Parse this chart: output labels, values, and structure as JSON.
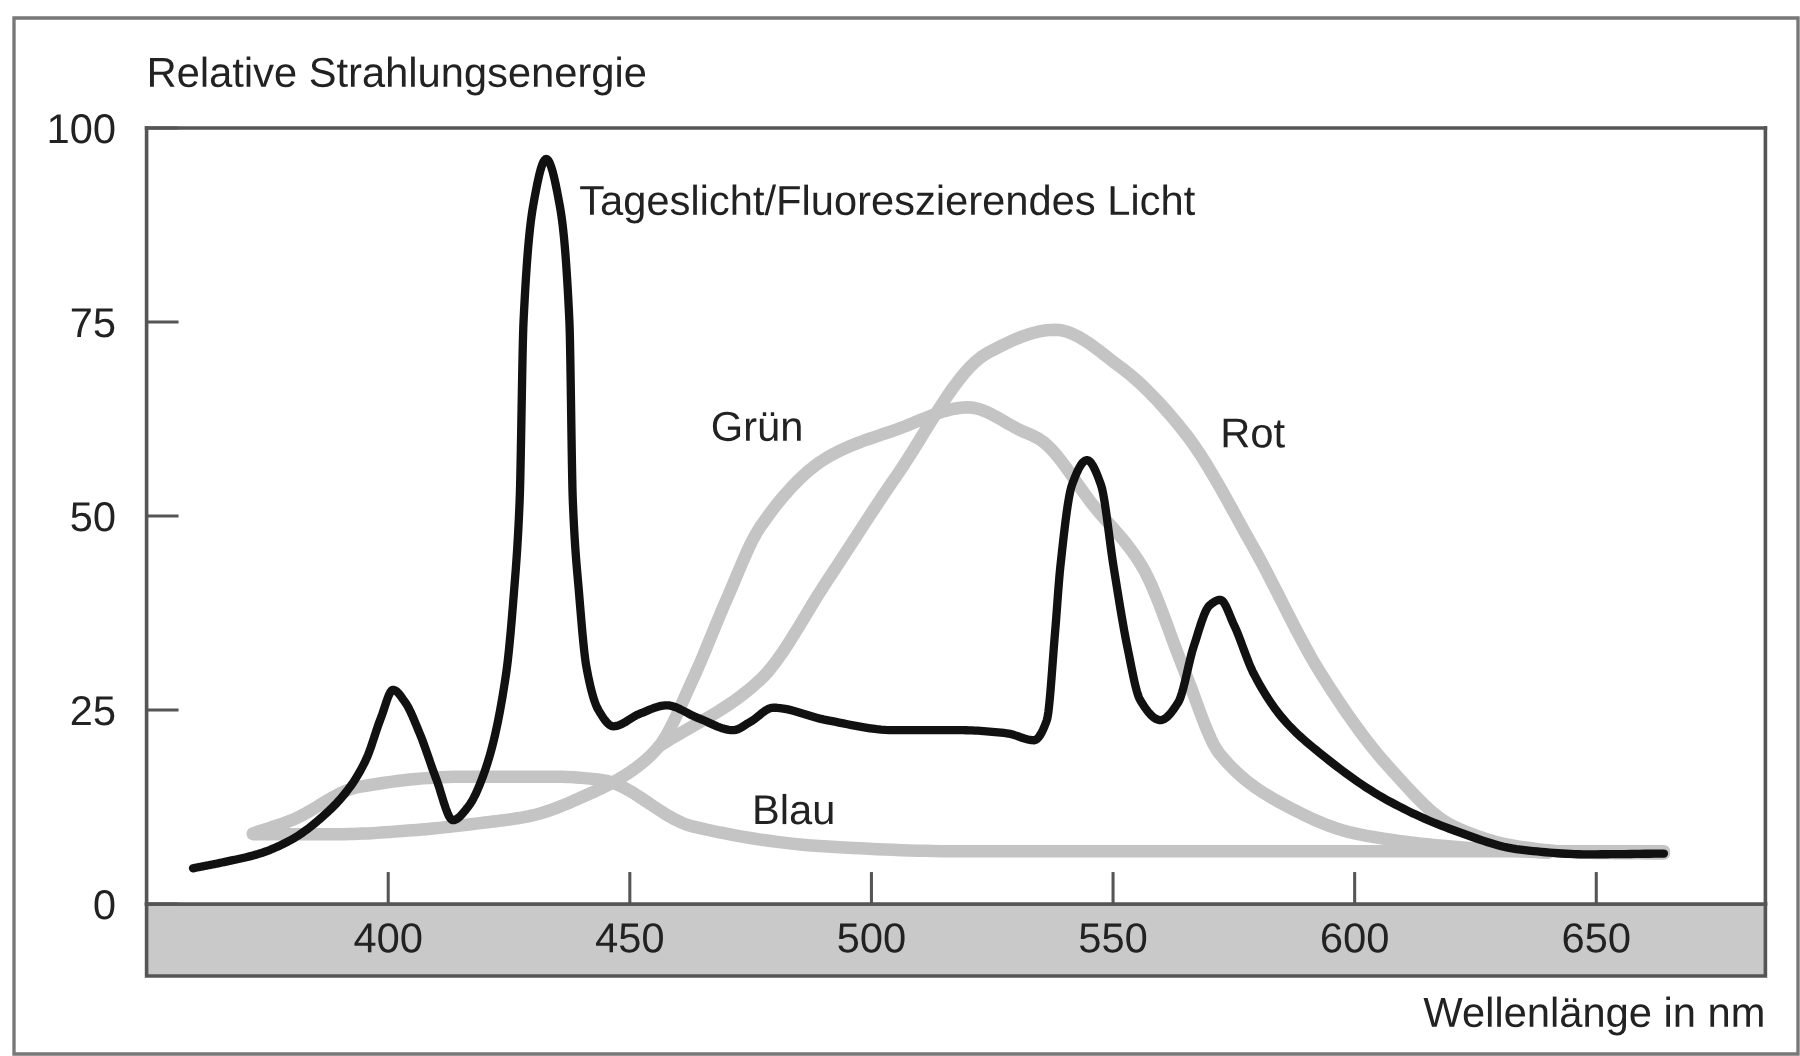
{
  "chart_data": {
    "type": "line",
    "xlabel": "Wellenlänge in nm",
    "ylabel": "Relative Strahlungsenergie",
    "xlim": [
      350,
      685
    ],
    "ylim": [
      0,
      100
    ],
    "xticks": [
      400,
      450,
      500,
      550,
      600,
      650
    ],
    "yticks": [
      0,
      25,
      50,
      75,
      100
    ],
    "line_style": "solid",
    "series": [
      {
        "name": "Tageslicht/Fluoreszierendes Licht",
        "color": "#111111",
        "x": [
          359.6,
          366,
          373.4,
          380,
          387.2,
          392,
          395.4,
          398.5,
          401,
          403.5,
          406.5,
          410,
          413.4,
          416.5,
          420.3,
          424.4,
          426,
          427.2,
          428,
          430,
          432.7,
          435.5,
          437.5,
          438.2,
          439.5,
          441,
          443.5,
          446.6,
          452,
          457.6,
          464,
          471.4,
          475,
          479.7,
          490.7,
          504.6,
          518.4,
          528,
          533.6,
          536.3,
          538,
          539.1,
          541.5,
          544.6,
          547.5,
          550.1,
          553,
          555.6,
          559.8,
          563.5,
          566.7,
          570,
          572.2,
          575,
          579.1,
          585,
          592.9,
          606.7,
          620.5,
          634.3,
          648.1,
          664
        ],
        "values": [
          4.6,
          5.4,
          6.5,
          8.3,
          11.7,
          15,
          18.6,
          24,
          27.6,
          26,
          22,
          16,
          10.8,
          12.5,
          17.7,
          29.7,
          40,
          52,
          75,
          90,
          96,
          90,
          75,
          52,
          40,
          30.6,
          25,
          22.9,
          24.5,
          25.6,
          24,
          22.4,
          23.5,
          25.3,
          23.7,
          22.4,
          22.4,
          22,
          21.1,
          23.7,
          35,
          43.5,
          54,
          57.2,
          54,
          43.5,
          33,
          26.3,
          23.7,
          26,
          33.2,
          38.5,
          39.2,
          36,
          29.7,
          24,
          19.4,
          13.4,
          9.5,
          7,
          6.4,
          6.5
        ]
      },
      {
        "name": "Grün",
        "color": "#c4c4c4",
        "x": [
          372,
          390,
          405,
          420,
          429,
          442,
          450,
          456,
          463,
          470,
          477,
          491,
          505,
          520,
          531,
          535,
          546,
          556,
          565,
          572,
          586,
          600,
          620,
          640
        ],
        "values": [
          9.0,
          9,
          9.5,
          10.5,
          11.3,
          14.3,
          17,
          20.3,
          28.9,
          39.2,
          48.6,
          57.6,
          61.1,
          64,
          61,
          59.8,
          51.3,
          43.5,
          29.7,
          19.4,
          12.6,
          9.1,
          7.4,
          6.6
        ]
      },
      {
        "name": "Rot",
        "color": "#c4c4c4",
        "x": [
          456,
          477,
          491,
          505,
          524,
          538,
          551.5,
          565,
          579,
          593,
          607,
          620.5,
          634,
          648,
          664
        ],
        "values": [
          20.3,
          28.9,
          41.8,
          55,
          71,
          74,
          69.2,
          60.6,
          46,
          29.7,
          17.7,
          10,
          7.4,
          6.6,
          6.5
        ]
      },
      {
        "name": "Blau",
        "color": "#c4c4c4",
        "x": [
          372,
          380,
          394,
          415,
          435,
          444,
          463,
          491,
          518,
          560,
          600,
          664
        ],
        "values": [
          9.1,
          10.8,
          15.1,
          16.4,
          16.4,
          16,
          10,
          7.4,
          6.8,
          6.8,
          6.8,
          6.8
        ]
      }
    ]
  }
}
